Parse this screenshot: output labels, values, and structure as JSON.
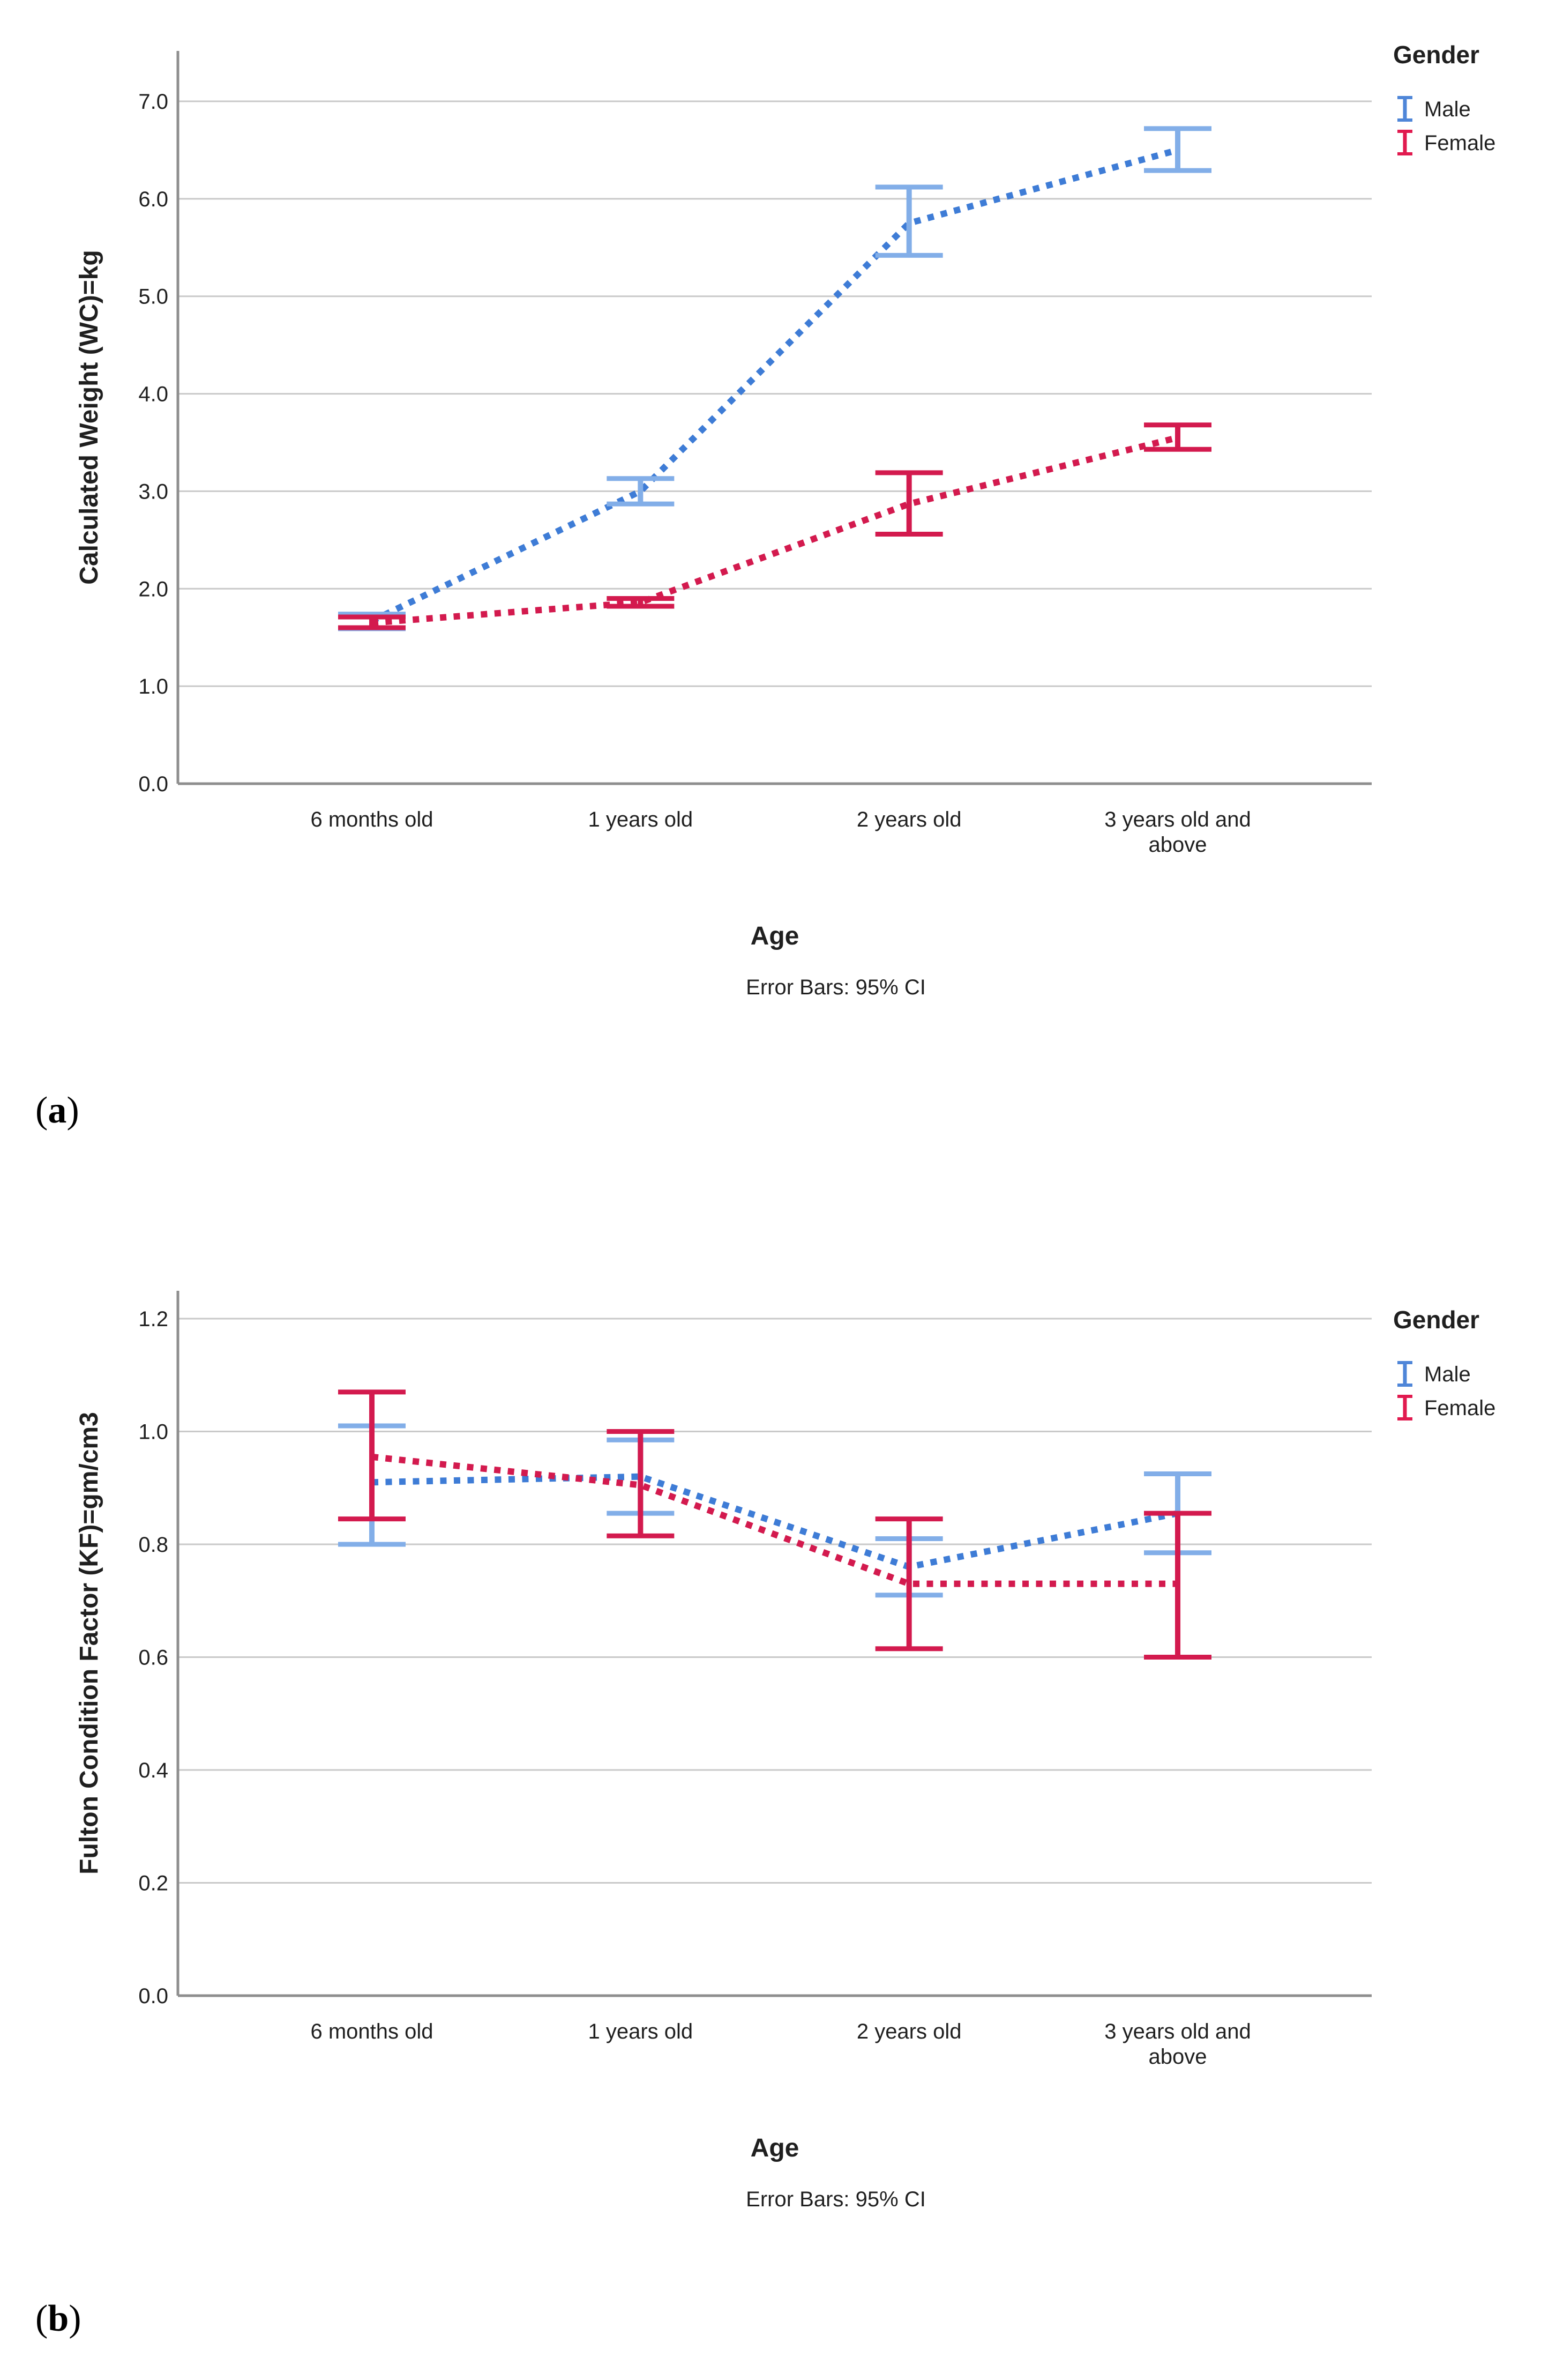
{
  "page": {
    "background": "#ffffff"
  },
  "panel_labels": {
    "a": "(a)",
    "b": "(b)"
  },
  "colors": {
    "male_line": "#3E7CD6",
    "male_error": "#82AEE8",
    "female_line": "#D31A4E",
    "legend_male": "#4F86D8",
    "legend_female": "#E11A4F",
    "gridline": "#C9C9C9",
    "axis": "#8E8E8E",
    "text": "#1F1F1F"
  },
  "chart_data": [
    {
      "type": "line",
      "id": "weight-chart",
      "title": "",
      "ylabel": "Calculated Weight (WC)=kg",
      "xlabel": "Age",
      "footnote": "Error Bars: 95% CI",
      "legend": {
        "title": "Gender",
        "position": "top-right",
        "items": [
          "Male",
          "Female"
        ]
      },
      "categories": [
        "6 months old",
        "1 years old",
        "2 years old",
        "3 years old and above"
      ],
      "ylim": [
        0.0,
        7.5
      ],
      "yticks": [
        0,
        1,
        2,
        3,
        4,
        5,
        6,
        7
      ],
      "ytick_labels": [
        "0.0",
        "1.0",
        "2.0",
        "3.0",
        "4.0",
        "5.0",
        "6.0",
        "7.0"
      ],
      "grid": true,
      "error_bars": "95% CI",
      "line_style": "dotted",
      "series": [
        {
          "name": "Male",
          "values": [
            1.67,
            3.0,
            5.75,
            6.5
          ],
          "ci_low": [
            1.59,
            2.87,
            5.42,
            6.29
          ],
          "ci_high": [
            1.74,
            3.13,
            6.12,
            6.72
          ]
        },
        {
          "name": "Female",
          "values": [
            1.65,
            1.86,
            2.87,
            3.55
          ],
          "ci_low": [
            1.6,
            1.82,
            2.56,
            3.43
          ],
          "ci_high": [
            1.71,
            1.9,
            3.19,
            3.68
          ]
        }
      ]
    },
    {
      "type": "line",
      "id": "fulton-chart",
      "title": "",
      "ylabel": "Fulton Condition Factor (KF)=gm/cm3",
      "xlabel": "Age",
      "footnote": "Error Bars: 95% CI",
      "legend": {
        "title": "Gender",
        "position": "top-right",
        "items": [
          "Male",
          "Female"
        ]
      },
      "categories": [
        "6 months old",
        "1 years old",
        "2 years old",
        "3 years old and above"
      ],
      "ylim": [
        0.0,
        1.25
      ],
      "yticks": [
        0.0,
        0.2,
        0.4,
        0.6,
        0.8,
        1.0,
        1.2
      ],
      "ytick_labels": [
        "0.0",
        "0.2",
        "0.4",
        "0.6",
        "0.8",
        "1.0",
        "1.2"
      ],
      "grid": true,
      "error_bars": "95% CI",
      "line_style": "dotted",
      "series": [
        {
          "name": "Male",
          "values": [
            0.91,
            0.92,
            0.76,
            0.855
          ],
          "ci_low": [
            0.8,
            0.855,
            0.71,
            0.785
          ],
          "ci_high": [
            1.01,
            0.985,
            0.81,
            0.925
          ]
        },
        {
          "name": "Female",
          "values": [
            0.955,
            0.905,
            0.73,
            0.73
          ],
          "ci_low": [
            0.845,
            0.815,
            0.615,
            0.6
          ],
          "ci_high": [
            1.07,
            1.0,
            0.845,
            0.855
          ]
        }
      ]
    }
  ]
}
